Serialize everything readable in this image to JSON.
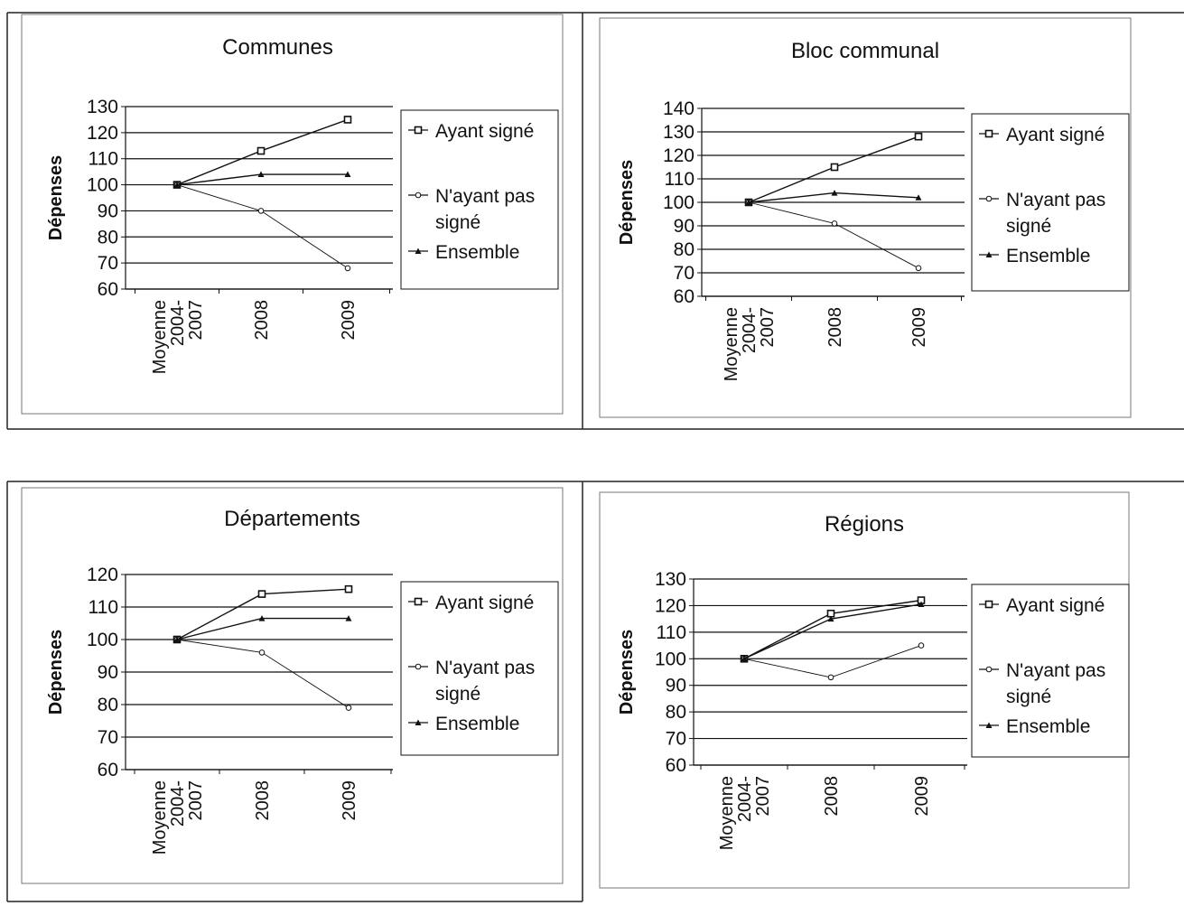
{
  "chart_data": [
    {
      "type": "line",
      "title": "Communes",
      "ylabel": "Dépenses",
      "xlabel": "",
      "categories": [
        [
          "Moyenne",
          "2004-",
          "2007"
        ],
        [
          "2008"
        ],
        [
          "2009"
        ]
      ],
      "ylim": [
        60,
        130
      ],
      "yticks": [
        60,
        70,
        80,
        90,
        100,
        110,
        120,
        130
      ],
      "grid": true,
      "legend_position": "right",
      "series": [
        {
          "name": "Ayant signé",
          "marker": "square",
          "values": [
            100,
            113,
            125
          ]
        },
        {
          "name": "N'ayant pas signé",
          "marker": "circle",
          "values": [
            100,
            90,
            68
          ]
        },
        {
          "name": "Ensemble",
          "marker": "triangle",
          "values": [
            100,
            104,
            104
          ]
        }
      ]
    },
    {
      "type": "line",
      "title": "Bloc communal",
      "ylabel": "Dépenses",
      "xlabel": "",
      "categories": [
        [
          "Moyenne",
          "2004-",
          "2007"
        ],
        [
          "2008"
        ],
        [
          "2009"
        ]
      ],
      "ylim": [
        60,
        140
      ],
      "yticks": [
        60,
        70,
        80,
        90,
        100,
        110,
        120,
        130,
        140
      ],
      "grid": true,
      "legend_position": "right",
      "series": [
        {
          "name": "Ayant signé",
          "marker": "square",
          "values": [
            100,
            115,
            128
          ]
        },
        {
          "name": "N'ayant pas signé",
          "marker": "circle",
          "values": [
            100,
            91,
            72
          ]
        },
        {
          "name": "Ensemble",
          "marker": "triangle",
          "values": [
            100,
            104,
            102
          ]
        }
      ]
    },
    {
      "type": "line",
      "title": "Départements",
      "ylabel": "Dépenses",
      "xlabel": "",
      "categories": [
        [
          "Moyenne",
          "2004-",
          "2007"
        ],
        [
          "2008"
        ],
        [
          "2009"
        ]
      ],
      "ylim": [
        60,
        120
      ],
      "yticks": [
        60,
        70,
        80,
        90,
        100,
        110,
        120
      ],
      "grid": true,
      "legend_position": "right",
      "series": [
        {
          "name": "Ayant signé",
          "marker": "square",
          "values": [
            100,
            114,
            115.5
          ]
        },
        {
          "name": "N'ayant pas signé",
          "marker": "circle",
          "values": [
            100,
            96,
            79
          ]
        },
        {
          "name": "Ensemble",
          "marker": "triangle",
          "values": [
            100,
            106.5,
            106.5
          ]
        }
      ]
    },
    {
      "type": "line",
      "title": "Régions",
      "ylabel": "Dépenses",
      "xlabel": "",
      "categories": [
        [
          "Moyenne",
          "2004-",
          "2007"
        ],
        [
          "2008"
        ],
        [
          "2009"
        ]
      ],
      "ylim": [
        60,
        130
      ],
      "yticks": [
        60,
        70,
        80,
        90,
        100,
        110,
        120,
        130
      ],
      "grid": true,
      "legend_position": "right",
      "series": [
        {
          "name": "Ayant signé",
          "marker": "square",
          "values": [
            100,
            117,
            122
          ]
        },
        {
          "name": "N'ayant pas signé",
          "marker": "circle",
          "values": [
            100,
            93,
            105
          ]
        },
        {
          "name": "Ensemble",
          "marker": "triangle",
          "values": [
            100,
            115,
            120.5
          ]
        }
      ]
    }
  ],
  "legend_lines": [
    [
      "Ayant signé"
    ],
    [
      "N'ayant pas",
      "signé"
    ],
    [
      "Ensemble"
    ]
  ]
}
